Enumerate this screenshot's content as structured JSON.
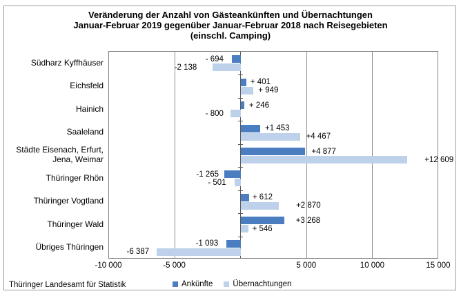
{
  "chart": {
    "title_lines": [
      "Veränderung der Anzahl von Gästeankünften und Übernachtungen",
      "Januar-Februar 2019 gegenüber Januar-Februar 2018 nach Reisegebieten",
      "(einschl. Camping)"
    ],
    "source": "Thüringer Landesamt für Statistik",
    "legend": [
      {
        "label": "Ankünfte",
        "color": "#4a7ec1"
      },
      {
        "label": "Übernachtungen",
        "color": "#bdd2ea"
      }
    ]
  },
  "chart_data": {
    "type": "bar",
    "orientation": "horizontal",
    "title": "Veränderung der Anzahl von Gästeankünften und Übernachtungen Januar-Februar 2019 gegenüber Januar-Februar 2018 nach Reisegebieten (einschl. Camping)",
    "categories": [
      "Südharz Kyffhäuser",
      "Eichsfeld",
      "Hainich",
      "Saaleland",
      "Städte Eisenach, Erfurt,\nJena, Weimar",
      "Thüringer Rhön",
      "Thüringer Vogtland",
      "Thüringer Wald",
      "Übriges Thüringen"
    ],
    "series": [
      {
        "name": "Ankünfte",
        "values": [
          -694,
          401,
          246,
          1453,
          4877,
          -1265,
          612,
          3268,
          -1093
        ],
        "labels": [
          "- 694",
          "+ 401",
          "+ 246",
          "+1 453",
          "+4 877",
          "-1 265",
          "+ 612",
          "+3 268",
          "-1 093"
        ]
      },
      {
        "name": "Übernachtungen",
        "values": [
          -2138,
          949,
          -800,
          4467,
          12609,
          -501,
          2870,
          546,
          -6387
        ],
        "labels": [
          "-2 138",
          "+ 949",
          "- 800",
          "+4 467",
          "+12 609",
          "- 501",
          "+2 870",
          "+ 546",
          "-6 387"
        ]
      }
    ],
    "xlim": [
      -10000,
      15000
    ],
    "xticks": [
      {
        "value": -10000,
        "label": "-10 000"
      },
      {
        "value": -5000,
        "label": "-5 000"
      },
      {
        "value": 0,
        "label": ""
      },
      {
        "value": 5000,
        "label": "5 000"
      },
      {
        "value": 10000,
        "label": "10 000"
      },
      {
        "value": 15000,
        "label": "15 000"
      }
    ],
    "grid": true,
    "legend_position": "bottom"
  },
  "colors": {
    "ankuenfte": "#4a7ec1",
    "uebernachtungen": "#bdd2ea",
    "gridline": "#8c8c8c",
    "axis": "#5a5a5a",
    "plot_border": "#7f7f7f",
    "frame_border": "#9c9c9c",
    "text": "#000000"
  }
}
